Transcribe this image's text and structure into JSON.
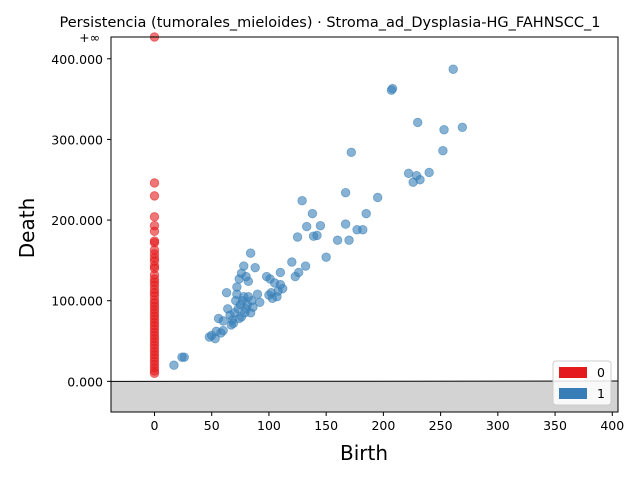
{
  "chart_data": {
    "type": "scatter",
    "title": "Persistencia (tumorales_mieloides) · Stroma_ad_Dysplasia-HG_FAHNSCC_1",
    "xlabel": "Birth",
    "ylabel": "Death",
    "xlim": [
      -38,
      405
    ],
    "ylim": [
      -38000,
      427000
    ],
    "infinity_label": "+∞",
    "infinity_value": 427000,
    "x_ticks": [
      0,
      50,
      100,
      150,
      200,
      250,
      300,
      350,
      400
    ],
    "x_tick_labels": [
      "0",
      "50",
      "100",
      "150",
      "200",
      "250",
      "300",
      "350",
      "400"
    ],
    "y_ticks": [
      0,
      100000,
      200000,
      300000,
      400000
    ],
    "y_tick_labels": [
      "0.000",
      "100.000",
      "200.000",
      "300.000",
      "400.000"
    ],
    "diagonal": true,
    "grid": false,
    "legend_placement": "bottom-right",
    "colors": {
      "h0": "#e41a1c",
      "h1": "#377eb8",
      "diagonal_fill": "#d3d3d3"
    },
    "series": [
      {
        "name": "0",
        "points": [
          [
            0,
            427000
          ],
          [
            0,
            246000
          ],
          [
            0,
            230000
          ],
          [
            0,
            204000
          ],
          [
            0,
            193000
          ],
          [
            0,
            186000
          ],
          [
            0,
            174000
          ],
          [
            0,
            172000
          ],
          [
            0,
            163000
          ],
          [
            0,
            158000
          ],
          [
            0,
            153000
          ],
          [
            0,
            149000
          ],
          [
            0,
            143000
          ],
          [
            0,
            140000
          ],
          [
            0,
            132000
          ],
          [
            0,
            127000
          ],
          [
            0,
            123000
          ],
          [
            0,
            119000
          ],
          [
            0,
            114000
          ],
          [
            0,
            110000
          ],
          [
            0,
            106000
          ],
          [
            0,
            101000
          ],
          [
            0,
            97000
          ],
          [
            0,
            93000
          ],
          [
            0,
            89000
          ],
          [
            0,
            85000
          ],
          [
            0,
            81000
          ],
          [
            0,
            77000
          ],
          [
            0,
            73000
          ],
          [
            0,
            69000
          ],
          [
            0,
            65000
          ],
          [
            0,
            61000
          ],
          [
            0,
            57000
          ],
          [
            0,
            53000
          ],
          [
            0,
            49000
          ],
          [
            0,
            45000
          ],
          [
            0,
            41000
          ],
          [
            0,
            37000
          ],
          [
            0,
            33000
          ],
          [
            0,
            29000
          ],
          [
            0,
            25000
          ],
          [
            0,
            21000
          ],
          [
            0,
            17000
          ],
          [
            0,
            13000
          ],
          [
            0,
            10000
          ]
        ]
      },
      {
        "name": "1",
        "points": [
          [
            17,
            20000
          ],
          [
            24,
            30000
          ],
          [
            26,
            30000
          ],
          [
            48,
            55000
          ],
          [
            50,
            57000
          ],
          [
            53,
            53000
          ],
          [
            54,
            62000
          ],
          [
            56,
            78000
          ],
          [
            58,
            60000
          ],
          [
            60,
            63000
          ],
          [
            60,
            75000
          ],
          [
            63,
            110000
          ],
          [
            64,
            90000
          ],
          [
            66,
            82000
          ],
          [
            67,
            70000
          ],
          [
            68,
            76000
          ],
          [
            69,
            72000
          ],
          [
            70,
            85000
          ],
          [
            71,
            100000
          ],
          [
            72,
            108000
          ],
          [
            72,
            117000
          ],
          [
            73,
            90000
          ],
          [
            74,
            127000
          ],
          [
            74,
            78000
          ],
          [
            75,
            95000
          ],
          [
            76,
            134000
          ],
          [
            76,
            80000
          ],
          [
            77,
            100000
          ],
          [
            78,
            105000
          ],
          [
            78,
            143000
          ],
          [
            79,
            85000
          ],
          [
            80,
            130000
          ],
          [
            80,
            90000
          ],
          [
            81,
            95000
          ],
          [
            82,
            124000
          ],
          [
            82,
            105000
          ],
          [
            84,
            85000
          ],
          [
            84,
            159000
          ],
          [
            85,
            100000
          ],
          [
            86,
            92000
          ],
          [
            88,
            141000
          ],
          [
            90,
            108000
          ],
          [
            92,
            98000
          ],
          [
            98,
            130000
          ],
          [
            100,
            107000
          ],
          [
            101,
            127000
          ],
          [
            102,
            110000
          ],
          [
            103,
            103000
          ],
          [
            105,
            122000
          ],
          [
            107,
            105000
          ],
          [
            108,
            112000
          ],
          [
            110,
            135000
          ],
          [
            110,
            120000
          ],
          [
            112,
            115000
          ],
          [
            120,
            148000
          ],
          [
            123,
            130000
          ],
          [
            125,
            179000
          ],
          [
            126,
            135000
          ],
          [
            129,
            224000
          ],
          [
            132,
            143000
          ],
          [
            133,
            192000
          ],
          [
            138,
            208000
          ],
          [
            139,
            180000
          ],
          [
            142,
            181000
          ],
          [
            145,
            193000
          ],
          [
            150,
            154000
          ],
          [
            160,
            175000
          ],
          [
            167,
            234000
          ],
          [
            167,
            195000
          ],
          [
            170,
            175000
          ],
          [
            172,
            284000
          ],
          [
            177,
            188000
          ],
          [
            182,
            188000
          ],
          [
            185,
            208000
          ],
          [
            195,
            228000
          ],
          [
            207,
            361000
          ],
          [
            208,
            363000
          ],
          [
            222,
            258000
          ],
          [
            226,
            247000
          ],
          [
            229,
            255000
          ],
          [
            230,
            321000
          ],
          [
            232,
            250000
          ],
          [
            240,
            259000
          ],
          [
            252,
            286000
          ],
          [
            253,
            312000
          ],
          [
            261,
            387000
          ],
          [
            269,
            315000
          ]
        ]
      }
    ]
  }
}
